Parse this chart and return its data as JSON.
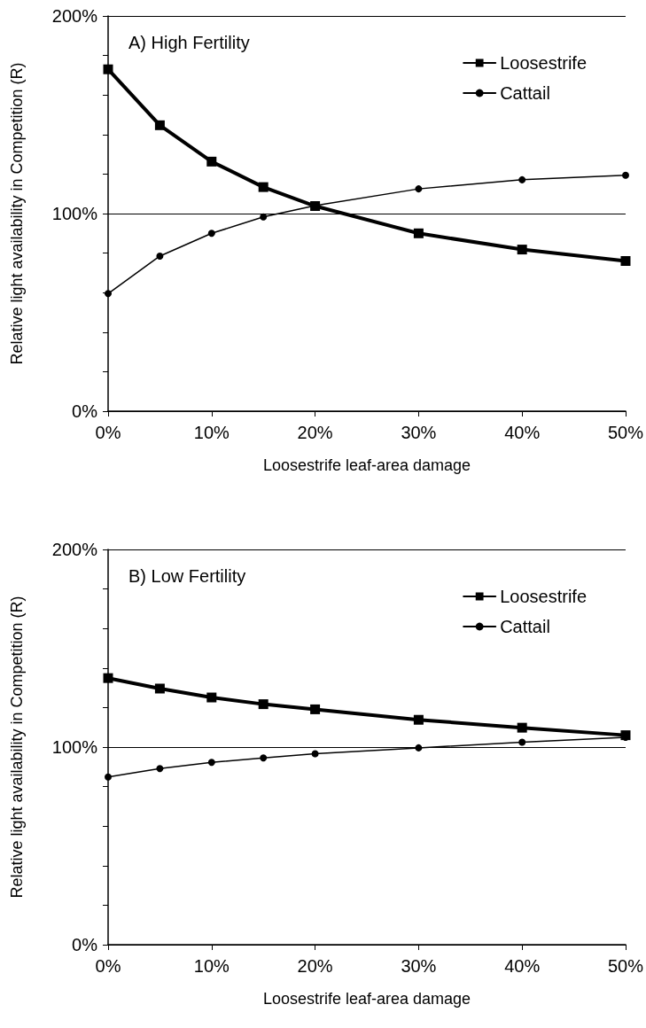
{
  "chart_data": [
    {
      "type": "line",
      "title": "A) High Fertility",
      "xlabel": "Loosestrife leaf-area damage",
      "ylabel": "Relative light availability in Competition (R)",
      "x": [
        0,
        5,
        10,
        15,
        20,
        30,
        40,
        50
      ],
      "series": [
        {
          "name": "Loosestrife",
          "color": "#000000",
          "marker": "square",
          "values": [
            173,
            144.7,
            126.3,
            113.4,
            103.8,
            90,
            81.8,
            76
          ]
        },
        {
          "name": "Cattail",
          "color": "#000000",
          "marker": "circle",
          "values": [
            59.5,
            78.5,
            90,
            98.3,
            104,
            112.5,
            117.1,
            119.4
          ]
        }
      ],
      "xlim": [
        0,
        50
      ],
      "xticks": [
        {
          "value": 0,
          "label": "0%"
        },
        {
          "value": 10,
          "label": "10%"
        },
        {
          "value": 20,
          "label": "20%"
        },
        {
          "value": 30,
          "label": "30%"
        },
        {
          "value": 40,
          "label": "40%"
        },
        {
          "value": 50,
          "label": "50%"
        }
      ],
      "ylim": [
        0,
        200
      ],
      "yticks": [
        {
          "value": 0,
          "label": "0%"
        },
        {
          "value": 20,
          "label": null
        },
        {
          "value": 40,
          "label": null
        },
        {
          "value": 60,
          "label": null
        },
        {
          "value": 80,
          "label": null
        },
        {
          "value": 100,
          "label": "100%"
        },
        {
          "value": 120,
          "label": null
        },
        {
          "value": 140,
          "label": null
        },
        {
          "value": 160,
          "label": null
        },
        {
          "value": 180,
          "label": null
        },
        {
          "value": 200,
          "label": "200%"
        }
      ],
      "grid": "y",
      "legend": "top right",
      "line_style": "solid"
    },
    {
      "type": "line",
      "title": "B) Low Fertility",
      "xlabel": "Loosestrife leaf-area damage",
      "ylabel": "Relative light availability in Competition (R)",
      "x": [
        0,
        5,
        10,
        15,
        20,
        30,
        40,
        50
      ],
      "series": [
        {
          "name": "Loosestrife",
          "color": "#000000",
          "marker": "square",
          "values": [
            134.9,
            129.6,
            125.1,
            121.7,
            119.1,
            113.8,
            109.8,
            106
          ]
        },
        {
          "name": "Cattail",
          "color": "#000000",
          "marker": "circle",
          "values": [
            84.9,
            89.1,
            92.3,
            94.5,
            96.6,
            99.6,
            102.5,
            104.9
          ]
        }
      ],
      "xlim": [
        0,
        50
      ],
      "xticks": [
        {
          "value": 0,
          "label": "0%"
        },
        {
          "value": 10,
          "label": "10%"
        },
        {
          "value": 20,
          "label": "20%"
        },
        {
          "value": 30,
          "label": "30%"
        },
        {
          "value": 40,
          "label": "40%"
        },
        {
          "value": 50,
          "label": "50%"
        }
      ],
      "ylim": [
        0,
        200
      ],
      "yticks": [
        {
          "value": 0,
          "label": "0%"
        },
        {
          "value": 20,
          "label": null
        },
        {
          "value": 40,
          "label": null
        },
        {
          "value": 60,
          "label": null
        },
        {
          "value": 80,
          "label": null
        },
        {
          "value": 100,
          "label": "100%"
        },
        {
          "value": 120,
          "label": null
        },
        {
          "value": 140,
          "label": null
        },
        {
          "value": 160,
          "label": null
        },
        {
          "value": 180,
          "label": null
        },
        {
          "value": 200,
          "label": "200%"
        }
      ],
      "grid": "y",
      "legend": "top right",
      "line_style": "solid"
    }
  ]
}
